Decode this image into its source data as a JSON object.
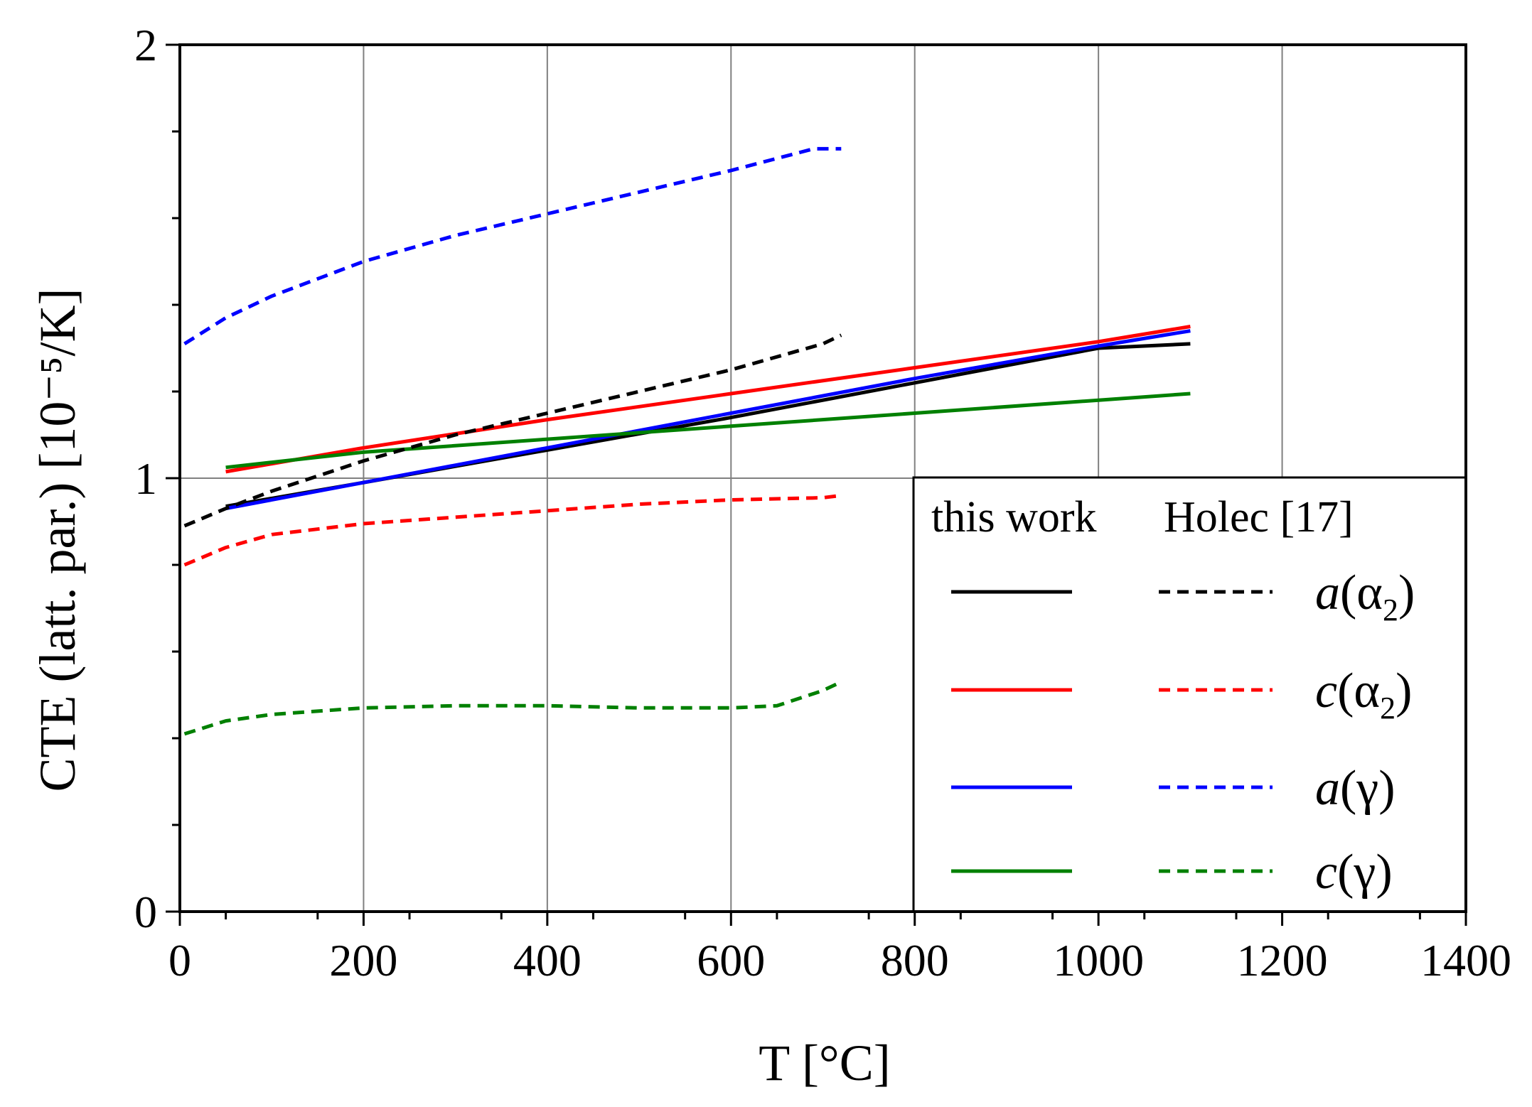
{
  "chart_data": {
    "type": "line",
    "title": "",
    "xlabel": "T [°C]",
    "ylabel": "CTE (latt. par.) [10⁻⁵/K]",
    "xlim": [
      0,
      1400
    ],
    "ylim": [
      0,
      2
    ],
    "xticks": [
      0,
      200,
      400,
      600,
      800,
      1000,
      1200,
      1400
    ],
    "xtick_labels": [
      "0",
      "200",
      "400",
      "600",
      "800",
      "1000",
      "1200",
      "1400"
    ],
    "yticks": [
      0,
      1,
      2
    ],
    "ytick_labels": [
      "0",
      "1",
      "2"
    ],
    "grid": true,
    "legend": {
      "placement": "bottom-right",
      "header_this_work": "this work",
      "header_ref": "Holec [17]",
      "entries": [
        {
          "var": "a",
          "phase": "α",
          "sub": "2",
          "color": "#000000"
        },
        {
          "var": "c",
          "phase": "α",
          "sub": "2",
          "color": "#ff0000"
        },
        {
          "var": "a",
          "phase": "γ",
          "sub": "",
          "color": "#0000ff"
        },
        {
          "var": "c",
          "phase": "γ",
          "sub": "",
          "color": "#008000"
        }
      ]
    },
    "series": [
      {
        "name": "a(α2) this work",
        "color": "#000000",
        "dash": false,
        "x": [
          50,
          200,
          400,
          600,
          800,
          1000,
          1100
        ],
        "y": [
          0.935,
          0.99,
          1.065,
          1.14,
          1.22,
          1.3,
          1.31
        ]
      },
      {
        "name": "c(α2) this work",
        "color": "#ff0000",
        "dash": false,
        "x": [
          50,
          200,
          400,
          600,
          800,
          1000,
          1100
        ],
        "y": [
          1.015,
          1.07,
          1.135,
          1.195,
          1.255,
          1.315,
          1.35
        ]
      },
      {
        "name": "a(γ) this work",
        "color": "#0000ff",
        "dash": false,
        "x": [
          50,
          200,
          400,
          600,
          800,
          1000,
          1100
        ],
        "y": [
          0.93,
          0.99,
          1.07,
          1.15,
          1.23,
          1.305,
          1.34
        ]
      },
      {
        "name": "c(γ) this work",
        "color": "#008000",
        "dash": false,
        "x": [
          50,
          200,
          400,
          600,
          800,
          1000,
          1100
        ],
        "y": [
          1.025,
          1.06,
          1.09,
          1.12,
          1.15,
          1.18,
          1.195
        ]
      },
      {
        "name": "a(α2) Holec [17]",
        "color": "#000000",
        "dash": true,
        "x": [
          5,
          50,
          100,
          200,
          300,
          400,
          500,
          600,
          700,
          720
        ],
        "y": [
          0.89,
          0.93,
          0.97,
          1.04,
          1.1,
          1.15,
          1.2,
          1.25,
          1.31,
          1.33
        ]
      },
      {
        "name": "c(α2) Holec [17]",
        "color": "#ff0000",
        "dash": true,
        "x": [
          5,
          50,
          100,
          200,
          300,
          400,
          500,
          600,
          700,
          720
        ],
        "y": [
          0.8,
          0.84,
          0.87,
          0.895,
          0.91,
          0.925,
          0.94,
          0.95,
          0.955,
          0.96
        ]
      },
      {
        "name": "a(γ) Holec [17]",
        "color": "#0000ff",
        "dash": true,
        "x": [
          5,
          50,
          100,
          200,
          300,
          400,
          500,
          600,
          690,
          720
        ],
        "y": [
          1.31,
          1.37,
          1.42,
          1.5,
          1.56,
          1.61,
          1.66,
          1.71,
          1.76,
          1.76
        ]
      },
      {
        "name": "c(γ) Holec [17]",
        "color": "#008000",
        "dash": true,
        "x": [
          5,
          50,
          100,
          200,
          300,
          400,
          500,
          600,
          650,
          700,
          720
        ],
        "y": [
          0.41,
          0.44,
          0.455,
          0.47,
          0.475,
          0.475,
          0.47,
          0.47,
          0.475,
          0.51,
          0.53
        ]
      }
    ]
  }
}
